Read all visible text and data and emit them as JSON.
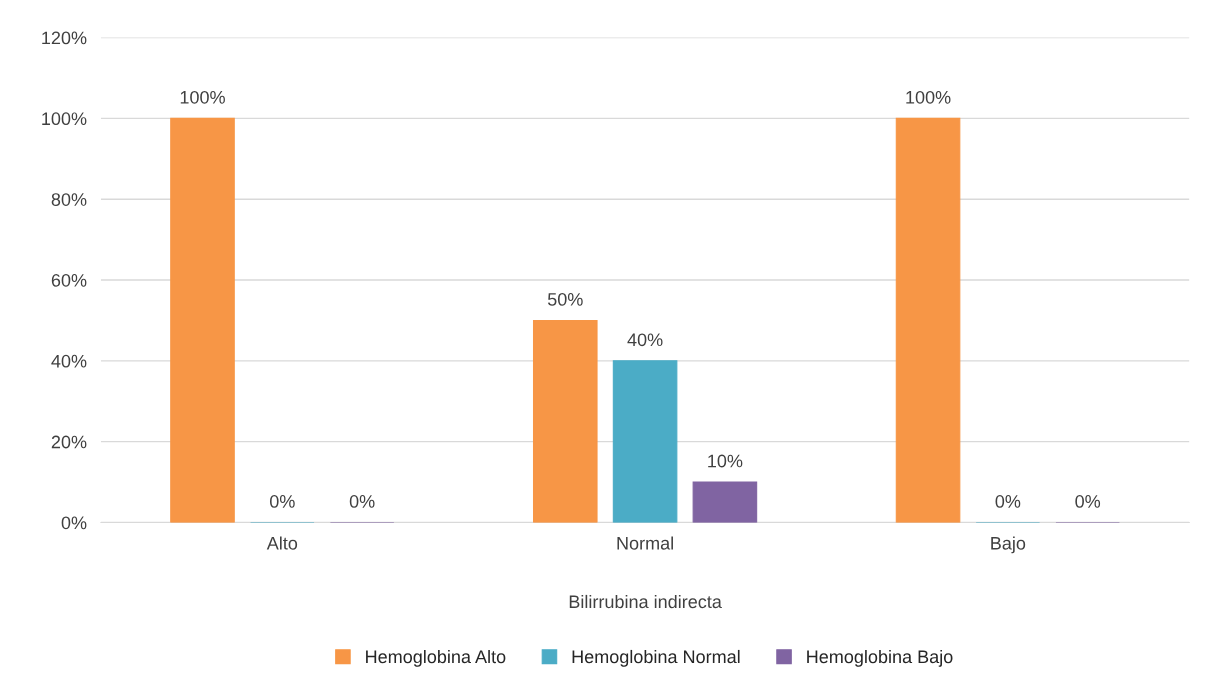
{
  "chart_data": {
    "type": "bar",
    "xlabel": "Bilirrubina indirecta",
    "categories": [
      "Alto",
      "Normal",
      "Bajo"
    ],
    "series": [
      {
        "name": "Hemoglobina Alto",
        "color": "#f79646",
        "values": [
          100,
          50,
          100
        ],
        "value_labels": [
          "100%",
          "50%",
          "100%"
        ]
      },
      {
        "name": "Hemoglobina Normal",
        "color": "#4bacc6",
        "values": [
          0,
          40,
          0
        ],
        "value_labels": [
          "0%",
          "40%",
          "0%"
        ]
      },
      {
        "name": "Hemoglobina Bajo",
        "color": "#8064a2",
        "values": [
          0,
          10,
          0
        ],
        "value_labels": [
          "0%",
          "10%",
          "0%"
        ]
      }
    ],
    "ylim": [
      0,
      120
    ],
    "yticks": [
      {
        "value": 0,
        "label": "0%"
      },
      {
        "value": 20,
        "label": "20%"
      },
      {
        "value": 40,
        "label": "40%"
      },
      {
        "value": 60,
        "label": "60%"
      },
      {
        "value": 80,
        "label": "80%"
      },
      {
        "value": 100,
        "label": "100%"
      },
      {
        "value": 120,
        "label": "120%"
      }
    ],
    "grid": "y",
    "legend": "bottom"
  }
}
